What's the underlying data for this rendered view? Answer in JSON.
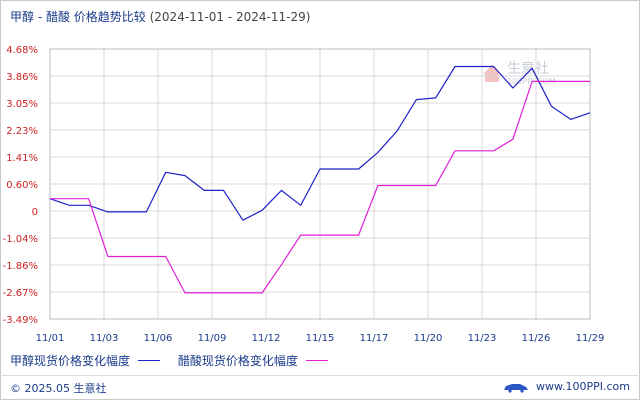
{
  "header": {
    "title": "甲醇 - 醋酸 价格趋势比较",
    "range": "(2024-11-01 - 2024-11-29)"
  },
  "watermark": {
    "name": "生意社",
    "url": "100PPI.COM"
  },
  "footer": {
    "copyright": "© 2025.05 生意社",
    "site": "www.100PPI.com"
  },
  "colors": {
    "methanol": "#1f22c8",
    "acetic": "#e020d8",
    "grid": "#d8d8d8",
    "tick_text": "#cc2222",
    "axis_text": "#1a3a8a"
  },
  "chart_data": {
    "type": "line",
    "title": "甲醇 - 醋酸 价格趋势比较",
    "x_range": [
      "2024-11-01",
      "2024-11-29"
    ],
    "x_tick_labels": [
      "11/01",
      "11/03",
      "11/06",
      "11/09",
      "11/12",
      "11/15",
      "11/17",
      "11/20",
      "11/23",
      "11/26",
      "11/29"
    ],
    "y_tick_labels": [
      "4.68%",
      "3.86%",
      "3.05%",
      "2.23%",
      "1.41%",
      "0.60%",
      "0",
      "-1.04%",
      "-1.86%",
      "-2.67%",
      "-3.49%"
    ],
    "ylim": [
      -3.49,
      4.68
    ],
    "grid": true,
    "legend_position": "bottom-left",
    "series": [
      {
        "name": "甲醇现货价格变化幅度",
        "points": [
          [
            "2024-11-01",
            0.15
          ],
          [
            "2024-11-02",
            -0.05
          ],
          [
            "2024-11-03",
            -0.05
          ],
          [
            "2024-11-04",
            -0.25
          ],
          [
            "2024-11-05",
            -0.25
          ],
          [
            "2024-11-06",
            -0.25
          ],
          [
            "2024-11-07",
            0.95
          ],
          [
            "2024-11-08",
            0.85
          ],
          [
            "2024-11-09",
            0.4
          ],
          [
            "2024-11-10",
            0.4
          ],
          [
            "2024-11-11",
            -0.5
          ],
          [
            "2024-11-12",
            -0.2
          ],
          [
            "2024-11-13",
            0.4
          ],
          [
            "2024-11-14",
            -0.05
          ],
          [
            "2024-11-15",
            1.05
          ],
          [
            "2024-11-16",
            1.05
          ],
          [
            "2024-11-17",
            1.05
          ],
          [
            "2024-11-18",
            1.55
          ],
          [
            "2024-11-19",
            2.2
          ],
          [
            "2024-11-20",
            3.15
          ],
          [
            "2024-11-21",
            3.2
          ],
          [
            "2024-11-22",
            4.15
          ],
          [
            "2024-11-23",
            4.15
          ],
          [
            "2024-11-24",
            4.15
          ],
          [
            "2024-11-25",
            3.5
          ],
          [
            "2024-11-26",
            4.1
          ],
          [
            "2024-11-27",
            2.95
          ],
          [
            "2024-11-28",
            2.55
          ],
          [
            "2024-11-29",
            2.75
          ]
        ]
      },
      {
        "name": "醋酸现货价格变化幅度",
        "points": [
          [
            "2024-11-01",
            0.15
          ],
          [
            "2024-11-02",
            0.15
          ],
          [
            "2024-11-03",
            0.15
          ],
          [
            "2024-11-04",
            -1.6
          ],
          [
            "2024-11-05",
            -1.6
          ],
          [
            "2024-11-06",
            -1.6
          ],
          [
            "2024-11-07",
            -1.6
          ],
          [
            "2024-11-08",
            -2.7
          ],
          [
            "2024-11-09",
            -2.7
          ],
          [
            "2024-11-10",
            -2.7
          ],
          [
            "2024-11-11",
            -2.7
          ],
          [
            "2024-11-12",
            -2.7
          ],
          [
            "2024-11-13",
            -1.85
          ],
          [
            "2024-11-14",
            -0.95
          ],
          [
            "2024-11-15",
            -0.95
          ],
          [
            "2024-11-16",
            -0.95
          ],
          [
            "2024-11-17",
            -0.95
          ],
          [
            "2024-11-18",
            0.55
          ],
          [
            "2024-11-19",
            0.55
          ],
          [
            "2024-11-20",
            0.55
          ],
          [
            "2024-11-21",
            0.55
          ],
          [
            "2024-11-22",
            1.6
          ],
          [
            "2024-11-23",
            1.6
          ],
          [
            "2024-11-24",
            1.6
          ],
          [
            "2024-11-25",
            1.95
          ],
          [
            "2024-11-26",
            3.7
          ],
          [
            "2024-11-27",
            3.7
          ],
          [
            "2024-11-28",
            3.7
          ],
          [
            "2024-11-29",
            3.7
          ]
        ]
      }
    ]
  }
}
